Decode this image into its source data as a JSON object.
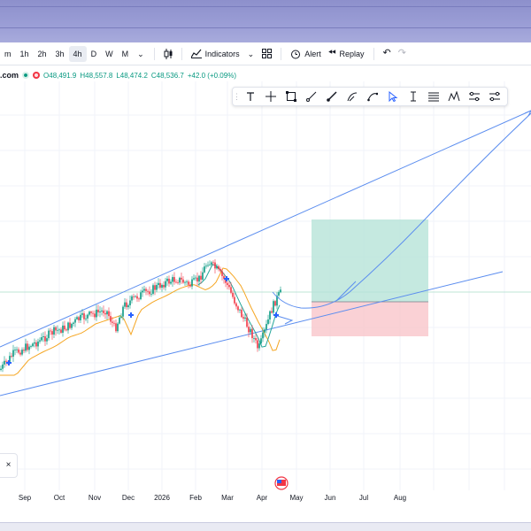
{
  "toolbar": {
    "timeframes": [
      "m",
      "1h",
      "2h",
      "3h",
      "4h",
      "D",
      "W",
      "M"
    ],
    "active_timeframe": "4h",
    "dropdown_icon": "chevron-down-icon",
    "candles_icon": "candlestick-icon",
    "indicators_label": "Indicators",
    "templates_icon": "grid-icon",
    "alert_label": "Alert",
    "replay_label": "Replay",
    "undo_icon": "undo-icon",
    "redo_icon": "redo-icon"
  },
  "legend": {
    "symbol_suffix": ".com",
    "open": "O48,491.9",
    "high": "H48,557.8",
    "low": "L48,474.2",
    "close": "C48,536.7",
    "change": "+42.0 (+0.09%)",
    "up_color": "#089981",
    "down_color": "#f23645"
  },
  "drawbar": {
    "tools": [
      "text-icon",
      "crosshair-icon",
      "rectangle-icon",
      "trendline-icon",
      "brush-icon",
      "fib-icon",
      "path-icon",
      "cursor-icon",
      "long-position-icon",
      "price-range-icon",
      "pattern-icon",
      "fib-channel-icon",
      "ray-icon"
    ]
  },
  "xaxis": {
    "labels": [
      "Sep",
      "Oct",
      "Nov",
      "Dec",
      "2026",
      "Feb",
      "Mar",
      "Apr",
      "May",
      "Jun",
      "Jul",
      "Aug"
    ]
  },
  "colors": {
    "trendline": "#5b8def",
    "ma": "#f5a623",
    "ma2": "#26a69a",
    "target_zone": "#b7e4d8",
    "stop_zone": "#f9c5cb"
  },
  "panel": {
    "close_label": "×"
  },
  "chart_data": {
    "type": "candlestick",
    "x": [
      "Sep",
      "Oct",
      "Nov",
      "Dec",
      "2026",
      "Feb",
      "Mar",
      "Apr",
      "May",
      "Jun",
      "Jul",
      "Aug"
    ]
  }
}
